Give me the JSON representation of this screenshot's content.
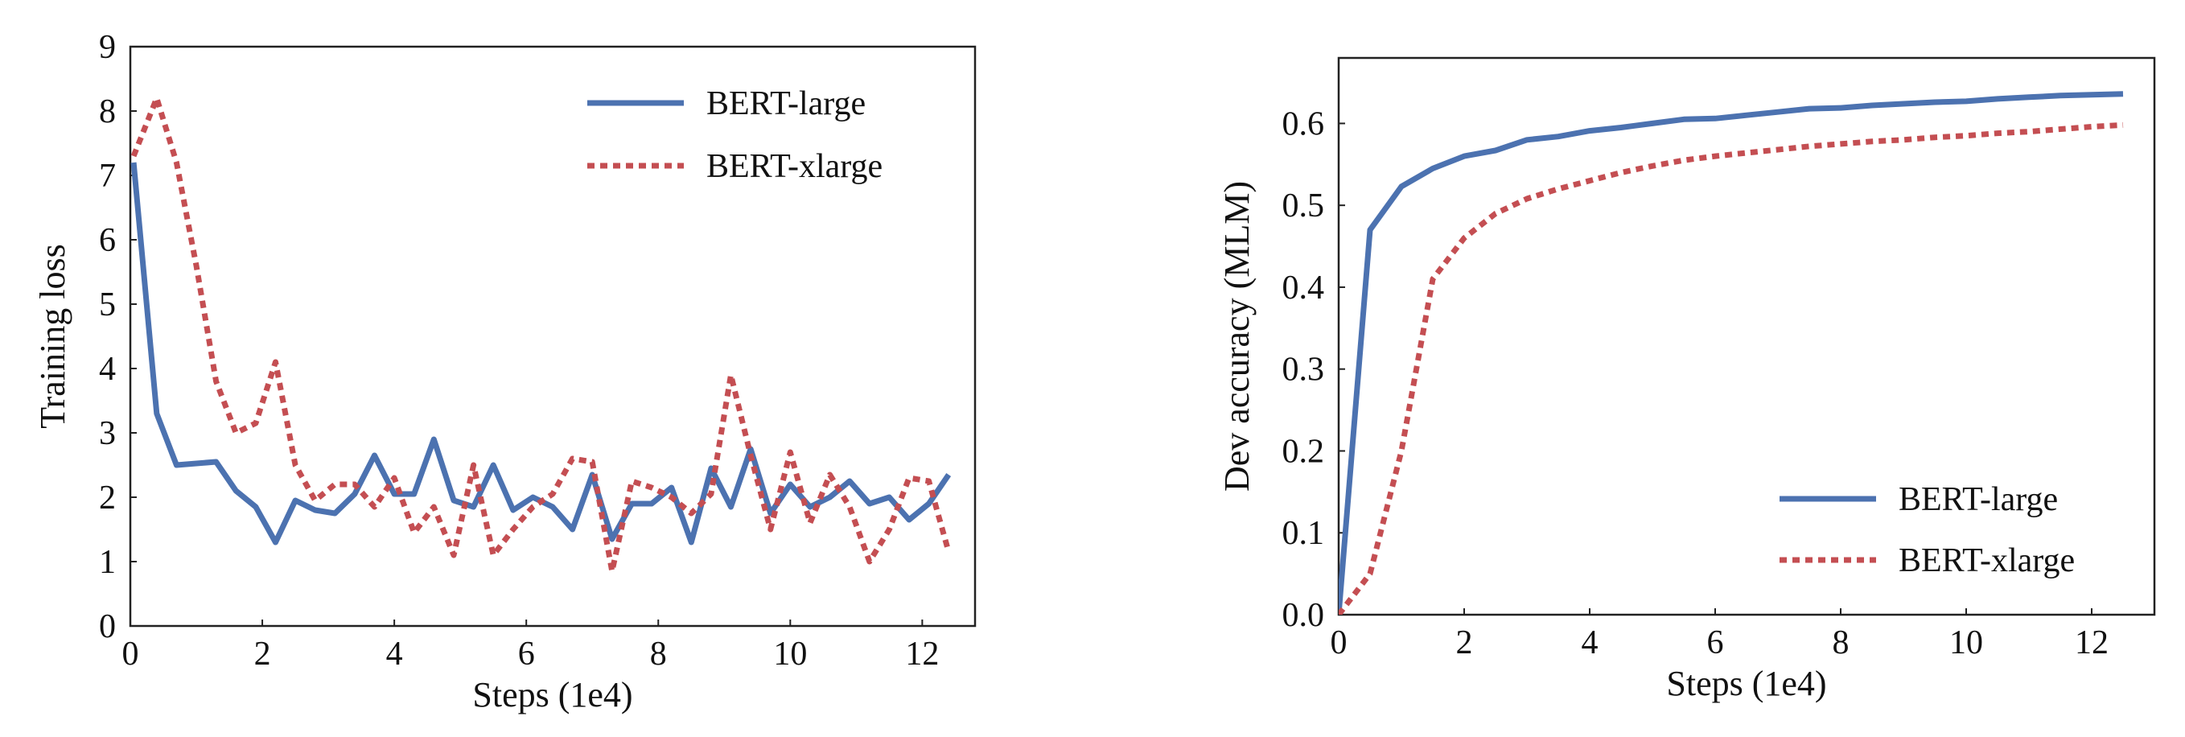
{
  "colors": {
    "bert_large": "#4c72b0",
    "bert_xlarge": "#c44e52",
    "axis": "#222222",
    "background": "#ffffff"
  },
  "chart_data": [
    {
      "type": "line",
      "title": "",
      "xlabel": "Steps (1e4)",
      "ylabel": "Training loss",
      "xlim": [
        0,
        12.8
      ],
      "ylim": [
        0,
        9
      ],
      "xticks": [
        0,
        2,
        4,
        6,
        8,
        10,
        12
      ],
      "yticks": [
        0,
        1,
        2,
        3,
        4,
        5,
        6,
        7,
        8,
        9
      ],
      "grid": false,
      "legend_position": "top-right",
      "series": [
        {
          "name": "BERT-large",
          "style": "solid",
          "x": [
            0.05,
            0.4,
            0.7,
            1.3,
            1.6,
            1.9,
            2.2,
            2.5,
            2.8,
            3.1,
            3.4,
            3.7,
            4.0,
            4.3,
            4.6,
            4.9,
            5.2,
            5.5,
            5.8,
            6.1,
            6.4,
            6.7,
            7.0,
            7.3,
            7.6,
            7.9,
            8.2,
            8.5,
            8.8,
            9.1,
            9.4,
            9.7,
            10.0,
            10.3,
            10.6,
            10.9,
            11.2,
            11.5,
            11.8,
            12.1,
            12.4
          ],
          "y": [
            7.2,
            3.3,
            2.5,
            2.55,
            2.1,
            1.85,
            1.3,
            1.95,
            1.8,
            1.75,
            2.05,
            2.65,
            2.05,
            2.05,
            2.9,
            1.95,
            1.85,
            2.5,
            1.8,
            2.0,
            1.85,
            1.5,
            2.35,
            1.35,
            1.9,
            1.9,
            2.15,
            1.3,
            2.45,
            1.85,
            2.75,
            1.75,
            2.2,
            1.85,
            2.0,
            2.25,
            1.9,
            2.0,
            1.65,
            1.9,
            2.35
          ]
        },
        {
          "name": "BERT-xlarge",
          "style": "dotted",
          "x": [
            0.05,
            0.4,
            0.7,
            1.0,
            1.3,
            1.6,
            1.9,
            2.2,
            2.5,
            2.8,
            3.1,
            3.4,
            3.7,
            4.0,
            4.3,
            4.6,
            4.9,
            5.2,
            5.5,
            5.8,
            6.1,
            6.4,
            6.7,
            7.0,
            7.3,
            7.6,
            7.9,
            8.2,
            8.5,
            8.8,
            9.1,
            9.4,
            9.7,
            10.0,
            10.3,
            10.6,
            10.9,
            11.2,
            11.5,
            11.8,
            12.1,
            12.4
          ],
          "y": [
            7.3,
            8.2,
            7.2,
            5.6,
            3.8,
            3.0,
            3.15,
            4.1,
            2.5,
            1.95,
            2.2,
            2.2,
            1.85,
            2.3,
            1.45,
            1.85,
            1.1,
            2.5,
            1.1,
            1.5,
            1.85,
            2.05,
            2.6,
            2.55,
            0.85,
            2.25,
            2.15,
            2.0,
            1.75,
            2.05,
            3.9,
            2.65,
            1.5,
            2.7,
            1.6,
            2.35,
            1.85,
            1.0,
            1.5,
            2.3,
            2.25,
            1.15
          ]
        }
      ]
    },
    {
      "type": "line",
      "title": "",
      "xlabel": "Steps (1e4)",
      "ylabel": "Dev accuracy (MLM)",
      "xlim": [
        0,
        13
      ],
      "ylim": [
        0,
        0.68
      ],
      "xticks": [
        0,
        2,
        4,
        6,
        8,
        10,
        12
      ],
      "yticks": [
        0.0,
        0.1,
        0.2,
        0.3,
        0.4,
        0.5,
        0.6
      ],
      "grid": false,
      "legend_position": "bottom-right",
      "series": [
        {
          "name": "BERT-large",
          "style": "solid",
          "x": [
            0,
            0.5,
            1.0,
            1.5,
            2.0,
            2.5,
            3.0,
            3.5,
            4.0,
            4.5,
            5.0,
            5.5,
            6.0,
            6.5,
            7.0,
            7.5,
            8.0,
            8.5,
            9.0,
            9.5,
            10.0,
            10.5,
            11.0,
            11.5,
            12.0,
            12.5
          ],
          "y": [
            0.0,
            0.47,
            0.523,
            0.545,
            0.56,
            0.567,
            0.58,
            0.584,
            0.591,
            0.595,
            0.6,
            0.605,
            0.606,
            0.61,
            0.614,
            0.618,
            0.619,
            0.622,
            0.624,
            0.626,
            0.627,
            0.63,
            0.632,
            0.634,
            0.635,
            0.636
          ]
        },
        {
          "name": "BERT-xlarge",
          "style": "dotted",
          "x": [
            0,
            0.5,
            1.0,
            1.5,
            2.0,
            2.5,
            3.0,
            3.5,
            4.0,
            4.5,
            5.0,
            5.5,
            6.0,
            6.5,
            7.0,
            7.5,
            8.0,
            8.5,
            9.0,
            9.5,
            10.0,
            10.5,
            11.0,
            11.5,
            12.0,
            12.5
          ],
          "y": [
            0.0,
            0.05,
            0.2,
            0.41,
            0.46,
            0.49,
            0.508,
            0.52,
            0.53,
            0.54,
            0.548,
            0.555,
            0.56,
            0.564,
            0.568,
            0.572,
            0.575,
            0.578,
            0.58,
            0.583,
            0.585,
            0.588,
            0.59,
            0.593,
            0.596,
            0.598
          ]
        }
      ]
    }
  ]
}
